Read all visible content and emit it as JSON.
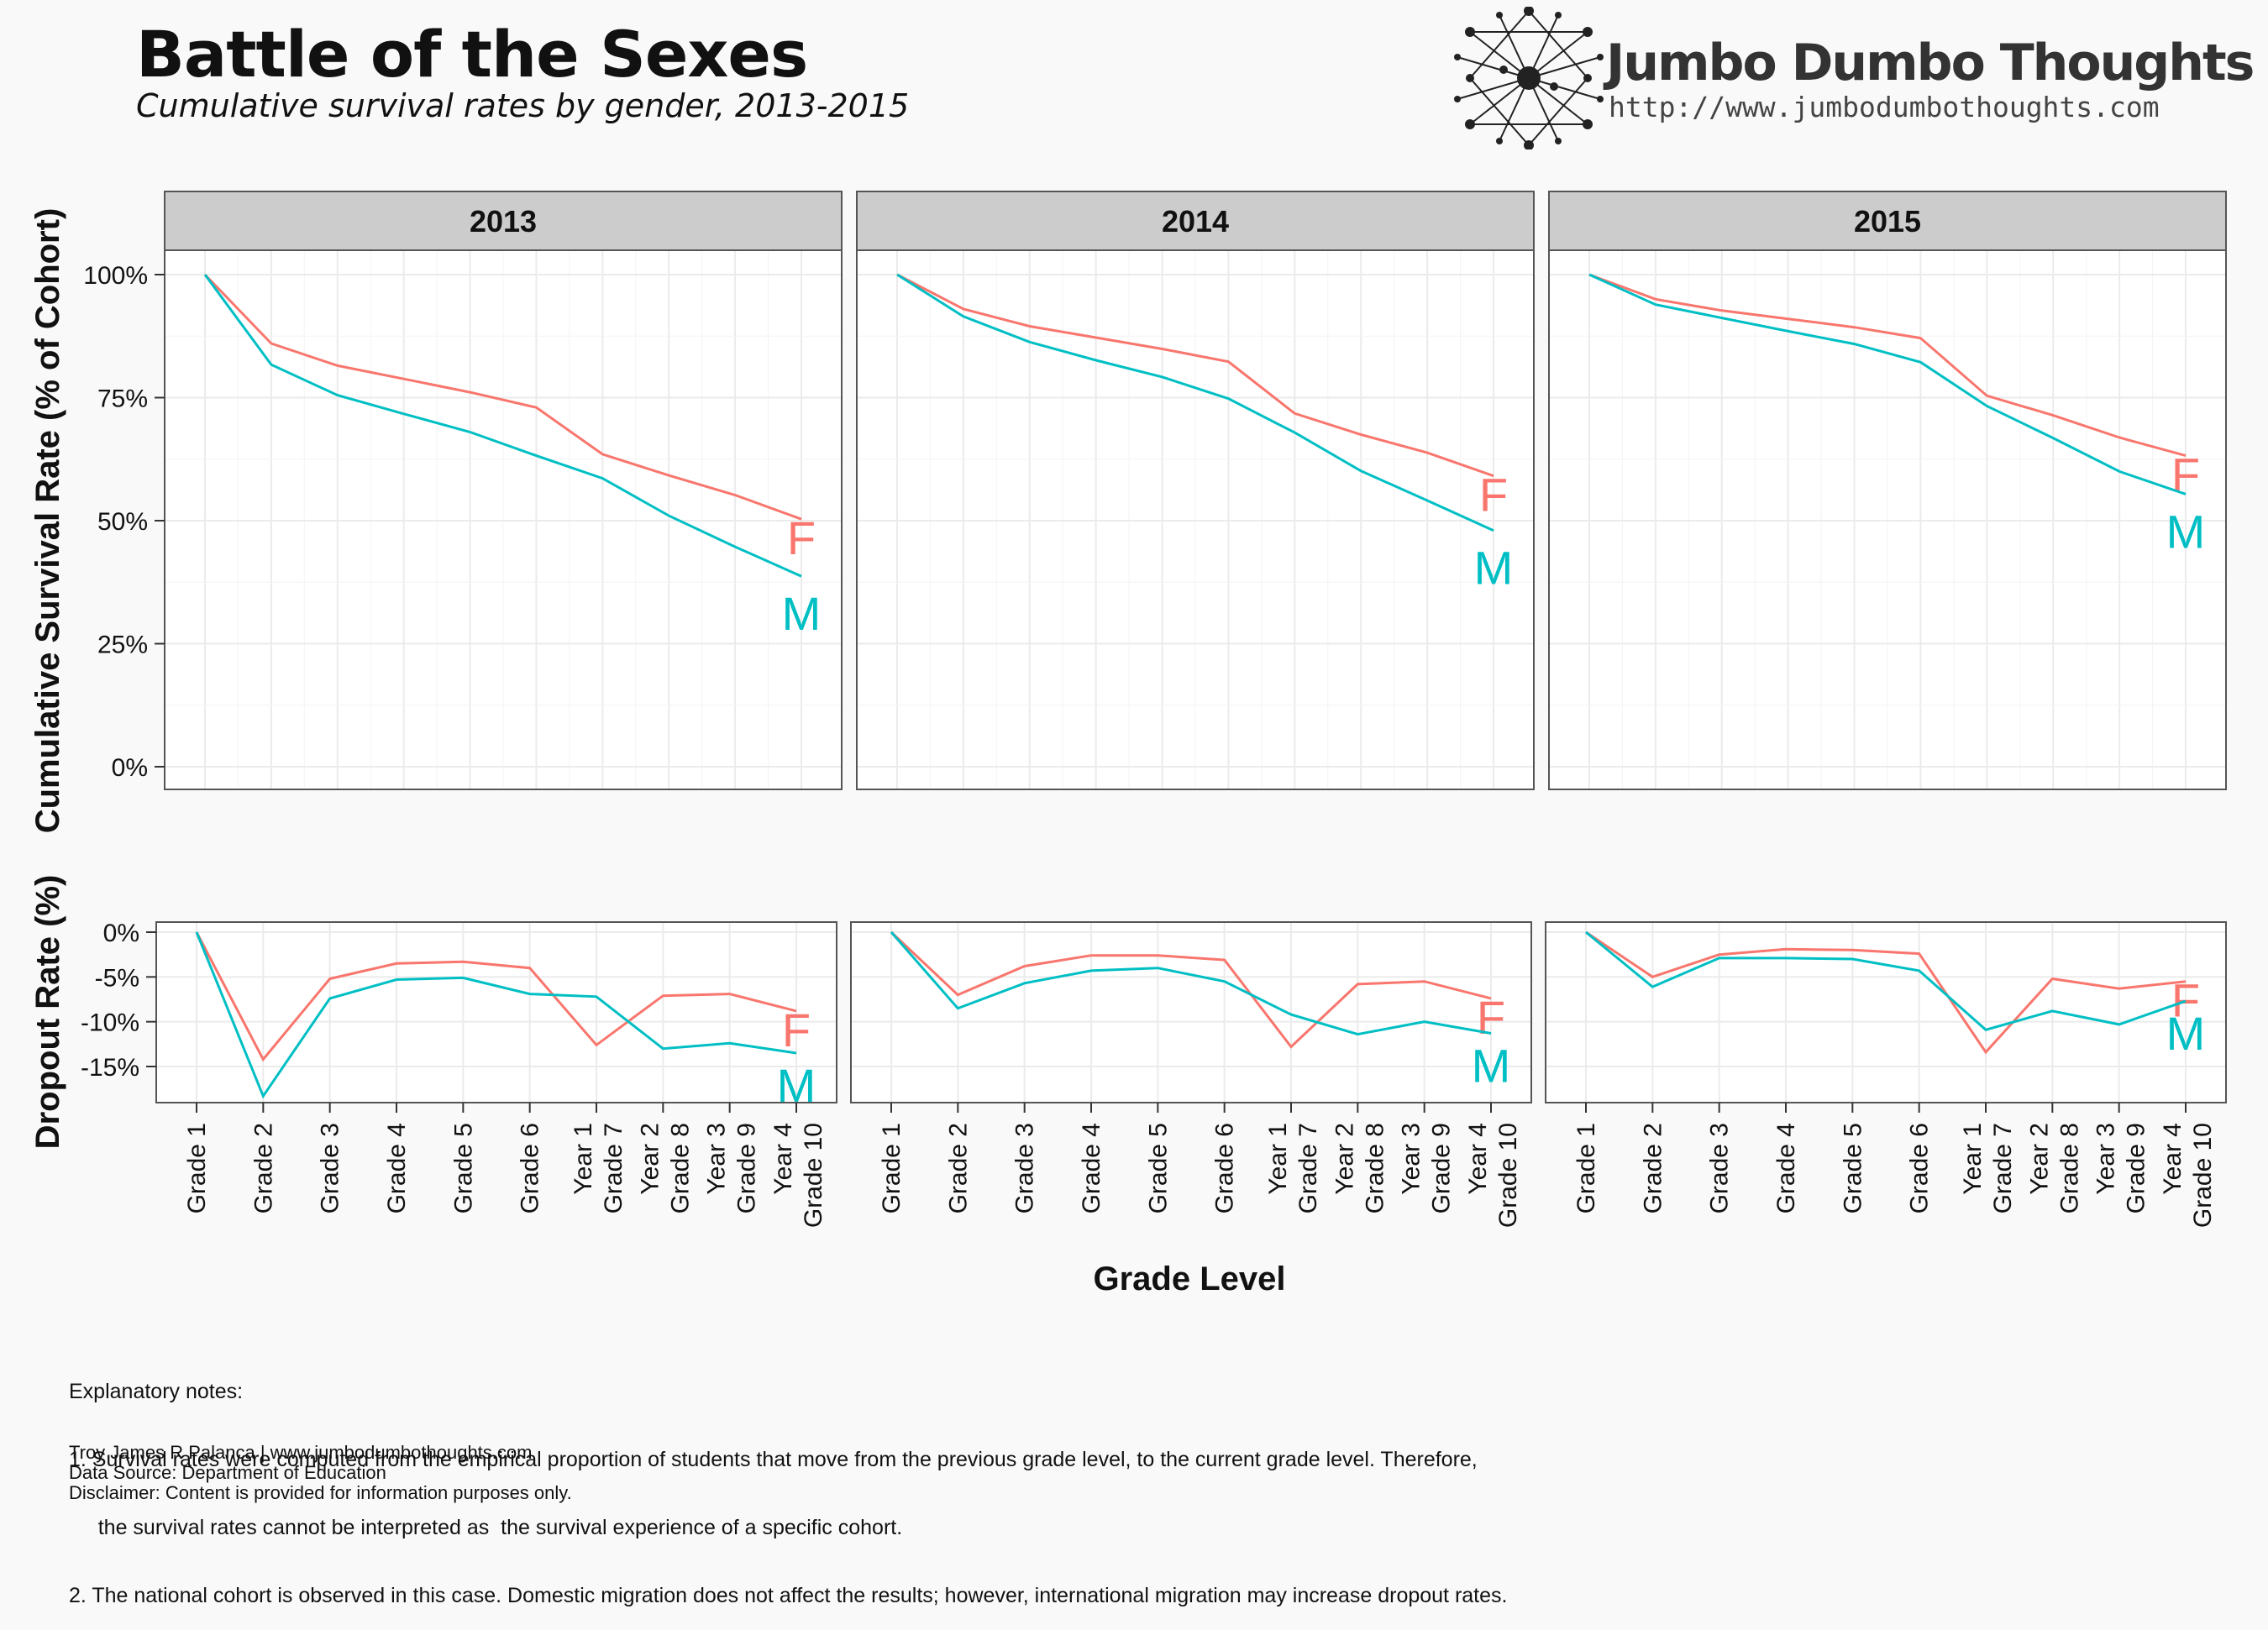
{
  "header": {
    "title": "Battle of the Sexes",
    "subtitle": "Cumulative survival rates by gender, 2013-2015"
  },
  "brand": {
    "name": "Jumbo Dumbo Thoughts",
    "url": "http://www.jumbodumbothoughts.com"
  },
  "colors": {
    "female": "#f8766d",
    "male": "#00bfc4",
    "strip": "#cccccc",
    "panel_border": "#555555",
    "grid": "#ebebeb"
  },
  "chart_data": [
    {
      "type": "line",
      "name": "survival",
      "ylabel": "Cumulative Survival Rate (% of Cohort)",
      "ylim": [
        0,
        100
      ],
      "yticks": [
        0,
        25,
        50,
        75,
        100
      ],
      "ytick_labels": [
        "0%",
        "25%",
        "50%",
        "75%",
        "100%"
      ],
      "grid": true,
      "categories": [
        "Grade 1",
        "Grade 2",
        "Grade 3",
        "Grade 4",
        "Grade 5",
        "Grade 6",
        "Year 1 Grade 7",
        "Year 2 Grade 8",
        "Year 3 Grade 9",
        "Year 4 Grade 10"
      ],
      "panels": [
        {
          "label": "2013",
          "series": [
            {
              "name": "F",
              "values": [
                100,
                86,
                81.5,
                78.8,
                76.1,
                73,
                63.5,
                59.2,
                55.2,
                50.3
              ]
            },
            {
              "name": "M",
              "values": [
                100,
                81.7,
                75.5,
                71.7,
                68,
                63.2,
                58.6,
                51,
                44.7,
                38.7
              ]
            }
          ]
        },
        {
          "label": "2014",
          "series": [
            {
              "name": "F",
              "values": [
                100,
                93,
                89.5,
                87.2,
                84.9,
                82.3,
                71.8,
                67.5,
                63.8,
                59.1
              ]
            },
            {
              "name": "M",
              "values": [
                100,
                91.5,
                86.3,
                82.6,
                79.2,
                74.8,
                67.9,
                60.1,
                54.1,
                48
              ]
            }
          ]
        },
        {
          "label": "2015",
          "series": [
            {
              "name": "F",
              "values": [
                100,
                95,
                92.7,
                91,
                89.3,
                87.1,
                75.4,
                71.4,
                66.9,
                63.2
              ]
            },
            {
              "name": "M",
              "values": [
                100,
                93.9,
                91.2,
                88.5,
                85.9,
                82.2,
                73.3,
                66.8,
                60,
                55.4
              ]
            }
          ]
        }
      ]
    },
    {
      "type": "line",
      "name": "dropout",
      "ylabel": "Dropout Rate (%)",
      "xlabel": "Grade Level",
      "ylim": [
        -19,
        1
      ],
      "yticks": [
        0,
        -5,
        -10,
        -15
      ],
      "ytick_labels": [
        "0%",
        "-5%",
        "-10%",
        "-15%"
      ],
      "grid": true,
      "categories": [
        "Grade 1",
        "Grade 2",
        "Grade 3",
        "Grade 4",
        "Grade 5",
        "Grade 6",
        "Year 1 Grade 7",
        "Year 2 Grade 8",
        "Year 3 Grade 9",
        "Year 4 Grade 10"
      ],
      "panels": [
        {
          "label": "2013",
          "series": [
            {
              "name": "F",
              "values": [
                0,
                -14.2,
                -5.2,
                -3.5,
                -3.3,
                -4,
                -12.6,
                -7.1,
                -6.9,
                -8.8
              ]
            },
            {
              "name": "M",
              "values": [
                0,
                -18.3,
                -7.4,
                -5.3,
                -5.1,
                -6.9,
                -7.2,
                -13,
                -12.4,
                -13.5
              ]
            }
          ]
        },
        {
          "label": "2014",
          "series": [
            {
              "name": "F",
              "values": [
                0,
                -7,
                -3.8,
                -2.6,
                -2.6,
                -3.1,
                -12.8,
                -5.8,
                -5.5,
                -7.4
              ]
            },
            {
              "name": "M",
              "values": [
                0,
                -8.5,
                -5.7,
                -4.3,
                -4,
                -5.5,
                -9.2,
                -11.4,
                -10,
                -11.3
              ]
            }
          ]
        },
        {
          "label": "2015",
          "series": [
            {
              "name": "F",
              "values": [
                0,
                -5,
                -2.5,
                -1.9,
                -2,
                -2.4,
                -13.4,
                -5.2,
                -6.3,
                -5.5
              ]
            },
            {
              "name": "M",
              "values": [
                0,
                -6.1,
                -2.9,
                -2.9,
                -3,
                -4.3,
                -10.9,
                -8.8,
                -10.3,
                -7.7
              ]
            }
          ]
        }
      ]
    }
  ],
  "tick_label_lines": [
    [
      "Grade 1"
    ],
    [
      "Grade 2"
    ],
    [
      "Grade 3"
    ],
    [
      "Grade 4"
    ],
    [
      "Grade 5"
    ],
    [
      "Grade 6"
    ],
    [
      "Year 1",
      "Grade 7"
    ],
    [
      "Year 2",
      "Grade 8"
    ],
    [
      "Year 3",
      "Grade 9"
    ],
    [
      "Year 4",
      "Grade 10"
    ]
  ],
  "notes": [
    "Explanatory notes:",
    "1. Survival rates were computed from the empirical proportion of students that move from the previous grade level, to the current grade level. Therefore,",
    "     the survival rates cannot be interpreted as  the survival experience of a specific cohort.",
    "2. The national cohort is observed in this case. Domestic migration does not affect the results; however, international migration may increase dropout rates."
  ],
  "credits": [
    "Troy James R Palanca | www.jumbodumbothoughts.com",
    "Data Source: Department of Education",
    "Disclaimer: Content is provided for information purposes only."
  ]
}
